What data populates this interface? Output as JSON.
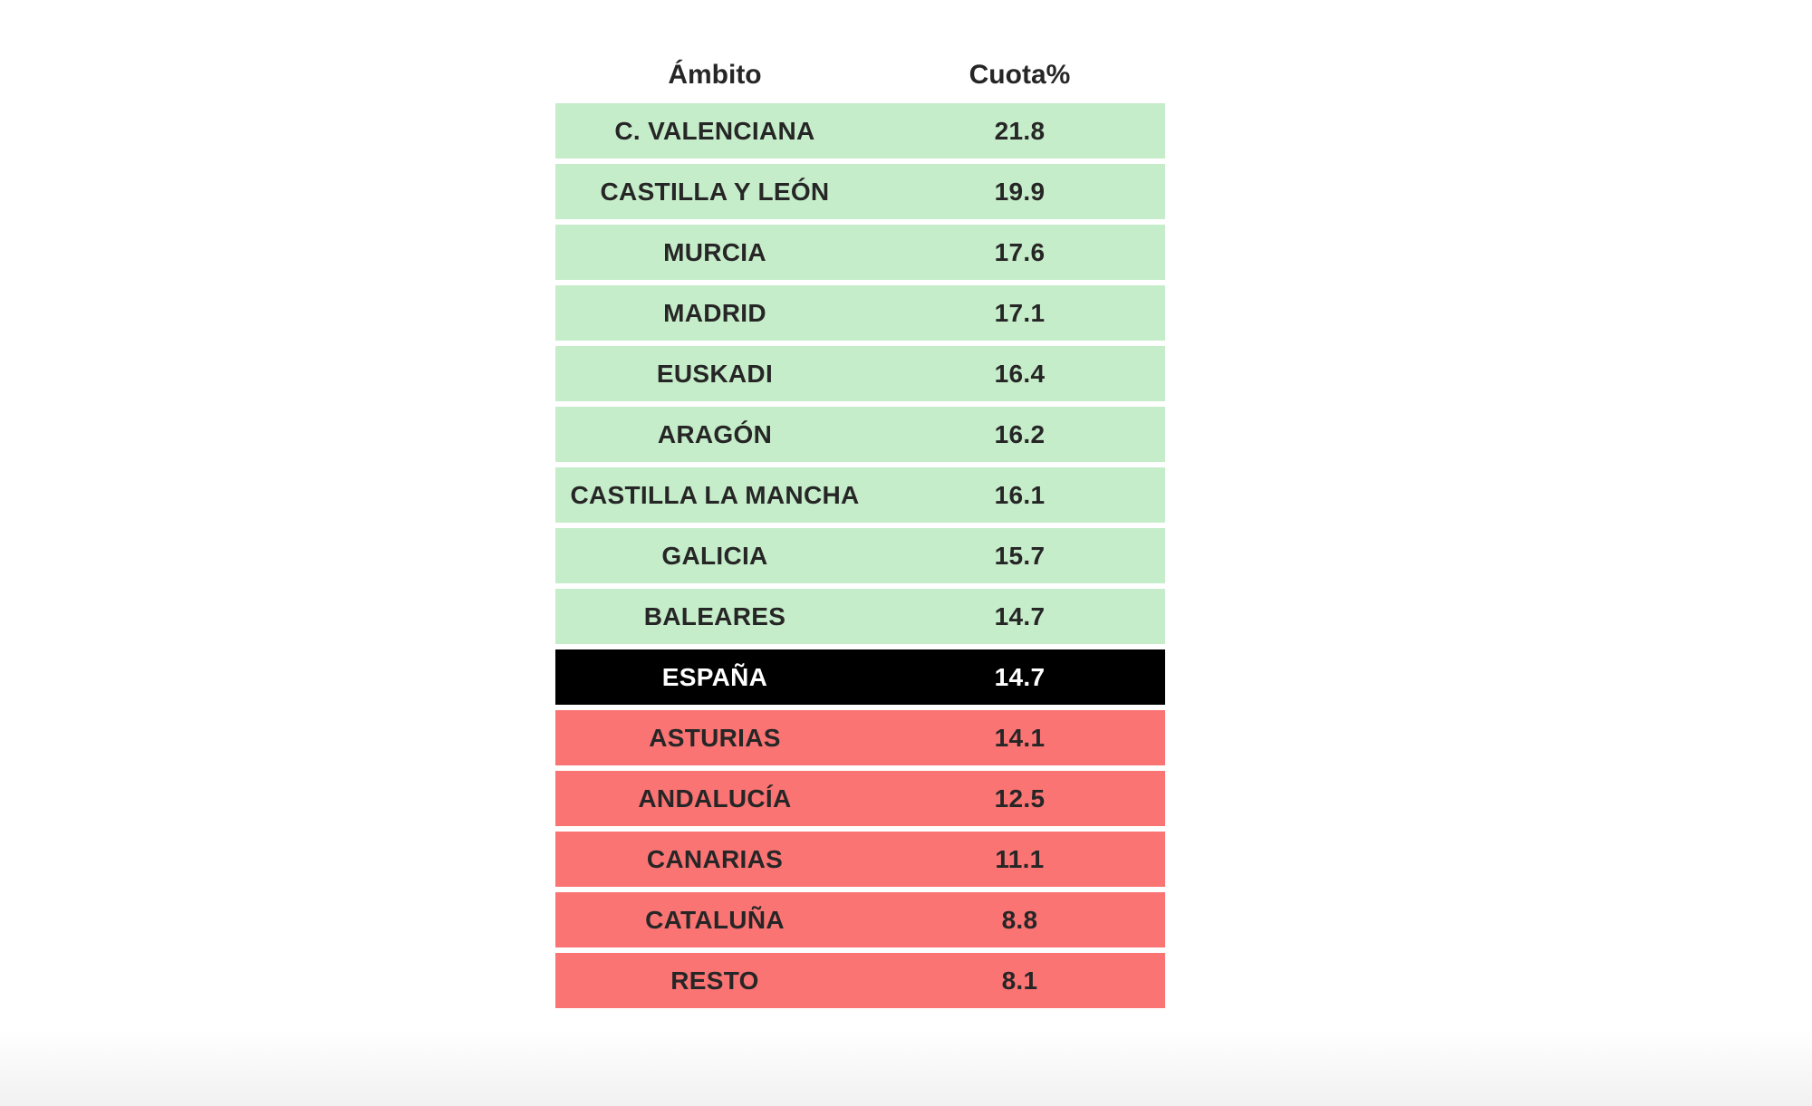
{
  "header": {
    "ambito": "Ámbito",
    "cuota": "Cuota%"
  },
  "rows": [
    {
      "ambito": "C. VALENCIANA",
      "cuota": "21.8",
      "state": "above"
    },
    {
      "ambito": "CASTILLA Y LEÓN",
      "cuota": "19.9",
      "state": "above"
    },
    {
      "ambito": "MURCIA",
      "cuota": "17.6",
      "state": "above"
    },
    {
      "ambito": "MADRID",
      "cuota": "17.1",
      "state": "above"
    },
    {
      "ambito": "EUSKADI",
      "cuota": "16.4",
      "state": "above"
    },
    {
      "ambito": "ARAGÓN",
      "cuota": "16.2",
      "state": "above"
    },
    {
      "ambito": "CASTILLA LA MANCHA",
      "cuota": "16.1",
      "state": "above"
    },
    {
      "ambito": "GALICIA",
      "cuota": "15.7",
      "state": "above"
    },
    {
      "ambito": "BALEARES",
      "cuota": "14.7",
      "state": "above"
    },
    {
      "ambito": "ESPAÑA",
      "cuota": "14.7",
      "state": "benchmark"
    },
    {
      "ambito": "ASTURIAS",
      "cuota": "14.1",
      "state": "below"
    },
    {
      "ambito": "ANDALUCÍA",
      "cuota": "12.5",
      "state": "below"
    },
    {
      "ambito": "CANARIAS",
      "cuota": "11.1",
      "state": "below"
    },
    {
      "ambito": "CATALUÑA",
      "cuota": "8.8",
      "state": "below"
    },
    {
      "ambito": "RESTO",
      "cuota": "8.1",
      "state": "below"
    }
  ],
  "colors": {
    "page_bg": "#ffffff",
    "above_row_bg": "#c6edca",
    "below_row_bg": "#fb7474",
    "benchmark_row_bg": "#000000",
    "benchmark_text": "#ffffff",
    "row_text": "#262626"
  },
  "chart_data": {
    "type": "table",
    "title": "",
    "columns": [
      "Ámbito",
      "Cuota%"
    ],
    "rows_data": [
      [
        "C. VALENCIANA",
        21.8
      ],
      [
        "CASTILLA Y LEÓN",
        19.9
      ],
      [
        "MURCIA",
        17.6
      ],
      [
        "MADRID",
        17.1
      ],
      [
        "EUSKADI",
        16.4
      ],
      [
        "ARAGÓN",
        16.2
      ],
      [
        "CASTILLA LA MANCHA",
        16.1
      ],
      [
        "GALICIA",
        15.7
      ],
      [
        "BALEARES",
        14.7
      ],
      [
        "ESPAÑA",
        14.7
      ],
      [
        "ASTURIAS",
        14.1
      ],
      [
        "ANDALUCÍA",
        12.5
      ],
      [
        "CANARIAS",
        11.1
      ],
      [
        "CATALUÑA",
        8.8
      ],
      [
        "RESTO",
        8.1
      ]
    ],
    "benchmark_row": "ESPAÑA",
    "color_coding": {
      "above_benchmark": "#c6edca",
      "benchmark": "#000000",
      "below_benchmark": "#fb7474"
    },
    "sort": "descending by Cuota%"
  }
}
